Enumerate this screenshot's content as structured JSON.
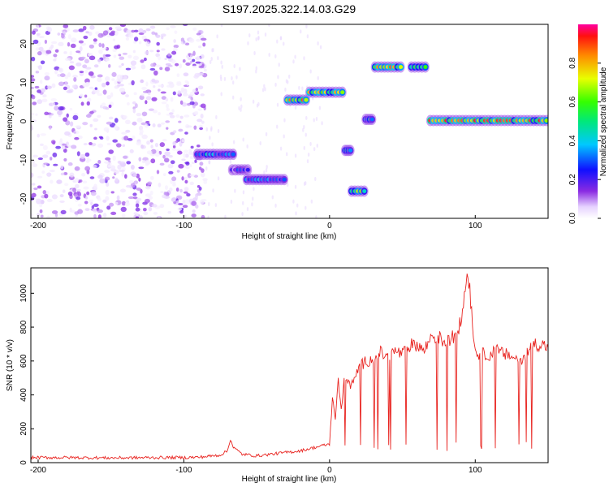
{
  "figure_title": "S197.2025.322.14.03.G29",
  "colors": {
    "snr_line": "#e8231f",
    "frame": "#000000"
  },
  "chart_data": [
    {
      "type": "heatmap",
      "xlabel": "Height of straight line (km)",
      "ylabel": "Frequency (Hz)",
      "xlim": [
        -205,
        150
      ],
      "ylim": [
        -25,
        25
      ],
      "x_ticks": [
        -200,
        -100,
        0,
        100
      ],
      "y_ticks": [
        -20,
        -10,
        0,
        10,
        20
      ],
      "colorbar": {
        "label": "Normalized spectral amplitude",
        "range": [
          0,
          1
        ],
        "ticks": [
          "0.0",
          "0.2",
          "0.4",
          "0.6",
          "0.8"
        ],
        "tick_values": [
          0,
          0.2,
          0.4,
          0.6,
          0.8
        ],
        "colormap": "rainbow (white/violet low → blue → cyan → green → yellow → red high)"
      },
      "features": [
        {
          "region": "noise",
          "x_range": [
            -205,
            -85
          ],
          "freq_range": [
            -25,
            25
          ],
          "amplitude": "low, scattered"
        },
        {
          "region": "track",
          "x_range": [
            -92,
            -65
          ],
          "freq": -8.5,
          "amplitude_peak": 0.45
        },
        {
          "region": "track",
          "x_range": [
            -68,
            -55
          ],
          "freq": -12.5,
          "amplitude_peak": 0.3
        },
        {
          "region": "track",
          "x_range": [
            -58,
            -30
          ],
          "freq": -15,
          "amplitude_peak": 0.45
        },
        {
          "region": "track",
          "x_range": [
            -30,
            -15
          ],
          "freq": 5.5,
          "amplitude_peak": 0.9
        },
        {
          "region": "track",
          "x_range": [
            -15,
            10
          ],
          "freq": 7.5,
          "amplitude_peak": 0.9
        },
        {
          "region": "track",
          "x_range": [
            10,
            15
          ],
          "freq": -7.5,
          "amplitude_peak": 0.5
        },
        {
          "region": "track",
          "x_range": [
            14,
            25
          ],
          "freq": -18,
          "amplitude_peak": 0.7
        },
        {
          "region": "track",
          "x_range": [
            24,
            30
          ],
          "freq": 0.5,
          "amplitude_peak": 0.5
        },
        {
          "region": "track",
          "x_range": [
            30,
            50
          ],
          "freq": 14,
          "amplitude_peak": 0.9
        },
        {
          "region": "track",
          "x_range": [
            55,
            67
          ],
          "freq": 14,
          "amplitude_peak": 0.6
        },
        {
          "region": "track",
          "x_range": [
            68,
            150
          ],
          "freq": 0.2,
          "amplitude_peak": 0.95
        }
      ]
    },
    {
      "type": "line",
      "xlabel": "Height of straight line (km)",
      "ylabel": "SNR (10 * v/v)",
      "xlim": [
        -205,
        150
      ],
      "ylim": [
        0,
        1150
      ],
      "x_ticks": [
        -200,
        -100,
        0,
        100
      ],
      "y_ticks": [
        0,
        200,
        400,
        600,
        800,
        1000
      ],
      "series": [
        {
          "x": [
            -205,
            -180,
            -150,
            -120,
            -100,
            -90,
            -80,
            -75,
            -70,
            -68,
            -66,
            -60,
            -50,
            -40,
            -30,
            -20,
            -10,
            -5,
            0,
            2,
            4,
            6,
            8,
            10,
            15,
            20,
            25,
            30,
            35,
            40,
            45,
            50,
            55,
            60,
            65,
            70,
            75,
            80,
            85,
            90,
            95,
            100,
            105,
            110,
            115,
            120,
            125,
            130,
            135,
            140,
            145,
            150
          ],
          "values": [
            30,
            30,
            28,
            30,
            30,
            32,
            40,
            45,
            70,
            140,
            90,
            50,
            40,
            50,
            60,
            70,
            90,
            100,
            110,
            380,
            250,
            500,
            300,
            520,
            450,
            560,
            600,
            610,
            650,
            620,
            660,
            640,
            690,
            700,
            660,
            750,
            740,
            700,
            750,
            820,
            1150,
            650,
            640,
            640,
            660,
            640,
            630,
            600,
            640,
            700,
            700,
            680
          ]
        }
      ]
    }
  ]
}
